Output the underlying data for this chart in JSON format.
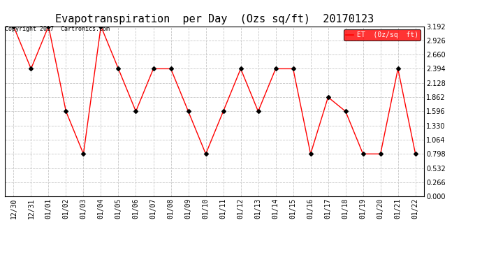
{
  "title": "Evapotranspiration  per Day  (Ozs sq/ft)  20170123",
  "copyright": "Copyright 2017  Cartronics.com",
  "legend_label": "ET  (0z/sq  ft)",
  "dates": [
    "12/30",
    "12/31",
    "01/01",
    "01/02",
    "01/03",
    "01/04",
    "01/05",
    "01/06",
    "01/07",
    "01/08",
    "01/09",
    "01/10",
    "01/11",
    "01/12",
    "01/13",
    "01/14",
    "01/15",
    "01/16",
    "01/17",
    "01/18",
    "01/19",
    "01/20",
    "01/21",
    "01/22"
  ],
  "values": [
    3.192,
    2.394,
    3.192,
    1.596,
    0.798,
    3.192,
    2.394,
    1.596,
    2.394,
    2.394,
    1.596,
    0.798,
    1.596,
    2.394,
    1.596,
    2.394,
    2.394,
    0.798,
    1.862,
    1.596,
    0.798,
    0.798,
    2.394,
    0.798
  ],
  "ylim": [
    0.0,
    3.192
  ],
  "yticks": [
    0.0,
    0.266,
    0.532,
    0.798,
    1.064,
    1.33,
    1.596,
    1.862,
    2.128,
    2.394,
    2.66,
    2.926,
    3.192
  ],
  "line_color": "red",
  "marker_color": "black",
  "legend_bg": "red",
  "legend_text_color": "white",
  "background_color": "white",
  "grid_color": "#c8c8c8",
  "title_fontsize": 11,
  "copyright_fontsize": 6,
  "tick_fontsize": 7,
  "legend_fontsize": 7
}
